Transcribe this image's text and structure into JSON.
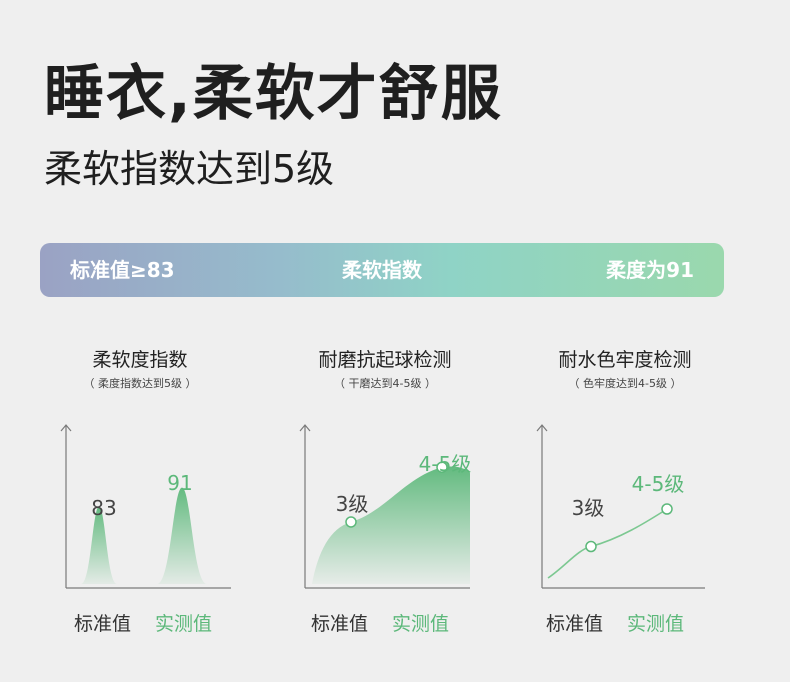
{
  "header": {
    "title": "睡衣,柔软才舒服",
    "subtitle": "柔软指数达到5级"
  },
  "band": {
    "left": "标准值≥83",
    "center": "柔软指数",
    "right": "柔度为91"
  },
  "colors": {
    "accent_green": "#5cb87a",
    "axis": "#7a7a7a",
    "background": "#efefef"
  },
  "chart_data": [
    {
      "type": "area",
      "title": "柔软度指数",
      "subtitle": "（ 柔度指数达到5级 ）",
      "categories": [
        "标准值",
        "实测值"
      ],
      "values": [
        83,
        91
      ],
      "data_labels": [
        "83",
        "91"
      ]
    },
    {
      "type": "area",
      "title": "耐磨抗起球检测",
      "subtitle": "（ 干磨达到4-5级 ）",
      "categories": [
        "标准值",
        "实测值"
      ],
      "values": [
        3,
        4.5
      ],
      "data_labels": [
        "3级",
        "4-5级"
      ]
    },
    {
      "type": "line",
      "title": "耐水色牢度检测",
      "subtitle": "（ 色牢度达到4-5级 ）",
      "categories": [
        "标准值",
        "实测值"
      ],
      "values": [
        3,
        4.5
      ],
      "data_labels": [
        "3级",
        "4-5级"
      ]
    }
  ]
}
